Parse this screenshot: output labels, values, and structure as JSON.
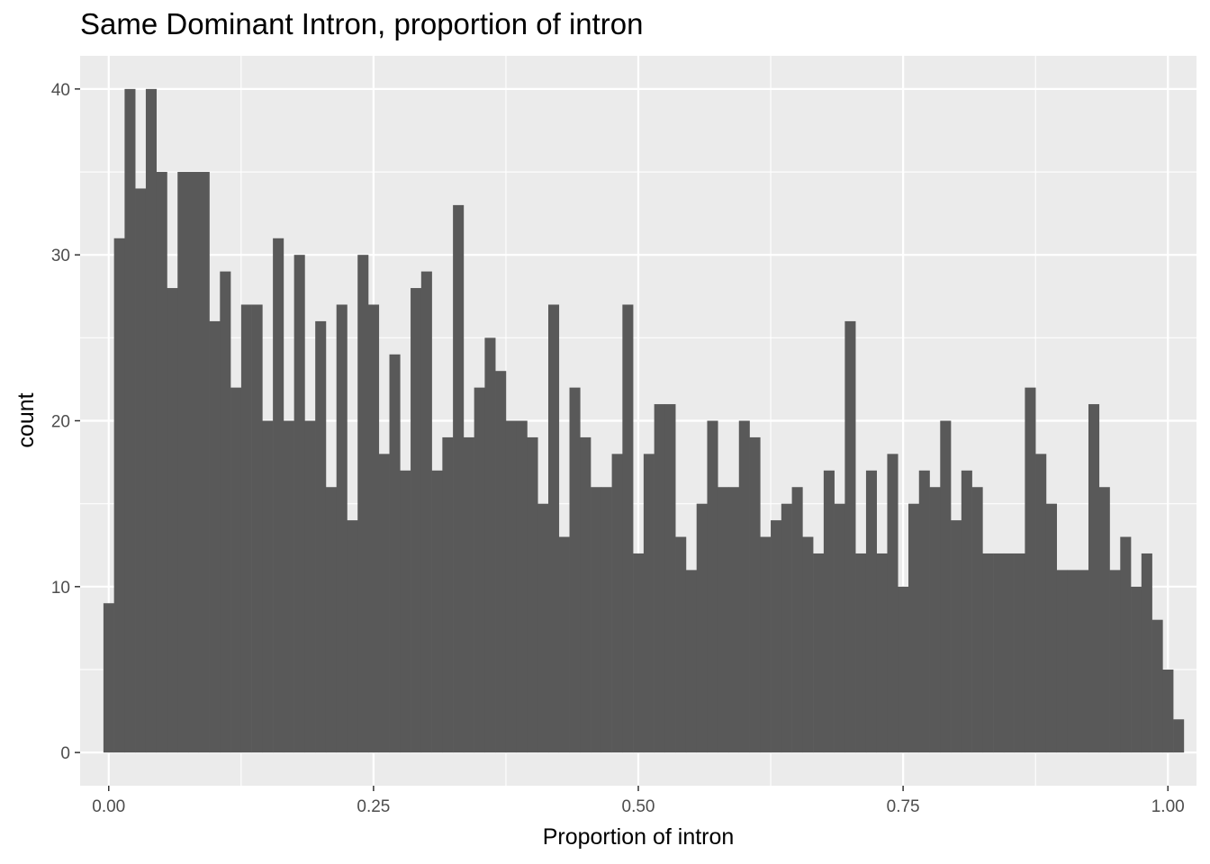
{
  "chart_data": {
    "type": "bar",
    "subtype": "histogram",
    "title": "Same Dominant Intron, proportion of intron",
    "xlabel": "Proportion of intron",
    "ylabel": "count",
    "xlim": [
      -0.027,
      1.027
    ],
    "ylim": [
      -2,
      42
    ],
    "x_ticks": [
      0.0,
      0.25,
      0.5,
      0.75,
      1.0
    ],
    "x_tick_labels": [
      "0.00",
      "0.25",
      "0.50",
      "0.75",
      "1.00"
    ],
    "y_ticks": [
      0,
      10,
      20,
      30,
      40
    ],
    "y_tick_labels": [
      "0",
      "10",
      "20",
      "30",
      "40"
    ],
    "bin_width": 0.01,
    "first_bin_center": 0.0,
    "bar_color": "#595959",
    "panel_background": "#ebebeb",
    "grid": true,
    "values": [
      9,
      31,
      40,
      34,
      40,
      35,
      28,
      35,
      35,
      35,
      26,
      29,
      22,
      27,
      27,
      20,
      31,
      20,
      30,
      20,
      26,
      16,
      27,
      14,
      30,
      27,
      18,
      24,
      17,
      28,
      29,
      17,
      19,
      33,
      19,
      22,
      25,
      23,
      20,
      20,
      19,
      15,
      27,
      13,
      22,
      19,
      16,
      16,
      18,
      27,
      12,
      18,
      21,
      21,
      13,
      11,
      15,
      20,
      16,
      16,
      20,
      19,
      13,
      14,
      15,
      16,
      13,
      12,
      17,
      15,
      26,
      12,
      17,
      12,
      18,
      10,
      15,
      17,
      16,
      20,
      14,
      17,
      16,
      12,
      12,
      12,
      12,
      22,
      18,
      15,
      11,
      11,
      11,
      21,
      16,
      11,
      13,
      10,
      12,
      8,
      5,
      2
    ]
  }
}
